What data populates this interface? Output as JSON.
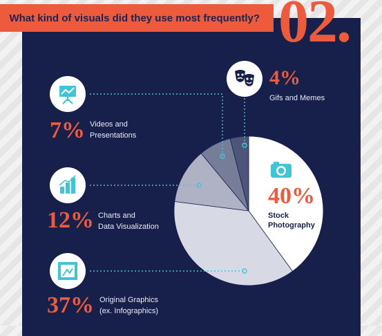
{
  "header": {
    "title": "What kind of visuals did they use most frequently?",
    "number": "02."
  },
  "colors": {
    "accent": "#ee5a3c",
    "panel": "#17204a",
    "leader": "#3fc6d6"
  },
  "chart_data": {
    "type": "pie",
    "slices": [
      {
        "label": "Stock Photography",
        "value": 40,
        "display": "40%",
        "color": "#ffffff"
      },
      {
        "label": "Original Graphics (ex. Infographics)",
        "value": 37,
        "display": "37%",
        "color": "#d7dae5"
      },
      {
        "label": "Charts and Data Visualization",
        "value": 12,
        "display": "12%",
        "color": "#aeb2c4"
      },
      {
        "label": "Videos and Presentations",
        "value": 7,
        "display": "7%",
        "color": "#767d98"
      },
      {
        "label": "Gifs and Memes",
        "value": 4,
        "display": "4%",
        "color": "#4e557a"
      }
    ]
  },
  "items": {
    "videos": {
      "pct": "7%",
      "line1": "Videos and",
      "line2": "Presentations",
      "icon": "presentation-icon"
    },
    "charts": {
      "pct": "12%",
      "line1": "Charts and",
      "line2": "Data Visualization",
      "icon": "bar-chart-icon"
    },
    "original": {
      "pct": "37%",
      "line1": "Original Graphics",
      "line2": "(ex. Infographics)",
      "icon": "picture-frame-icon"
    },
    "gifs": {
      "pct": "4%",
      "line1": "Gifs and Memes",
      "icon": "theater-masks-icon"
    },
    "stock": {
      "pct": "40%",
      "line1": "Stock",
      "line2": "Photography",
      "icon": "camera-icon"
    }
  }
}
